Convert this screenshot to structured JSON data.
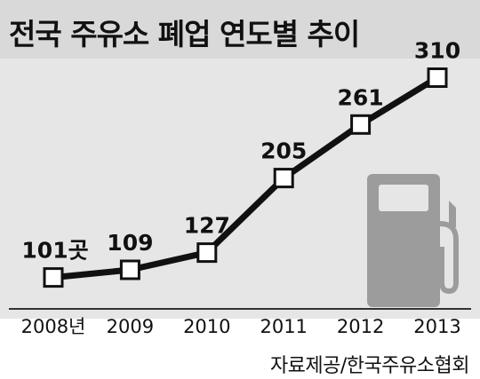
{
  "title": "전국 주유소 폐업 연도별 추이",
  "source": "자료제공/한국주유소협회",
  "chart_data": {
    "type": "line",
    "title": "전국 주유소 폐업 연도별 추이",
    "categories": [
      "2008년",
      "2009",
      "2010",
      "2011",
      "2012",
      "2013"
    ],
    "values": [
      101,
      109,
      127,
      205,
      261,
      310
    ],
    "value_labels": [
      "101곳",
      "109",
      "127",
      "205",
      "261",
      "310"
    ],
    "unit": "곳",
    "xlabel": "",
    "ylabel": "",
    "ylim": [
      70,
      330
    ],
    "grid": false,
    "legend": "none",
    "colors": {
      "line": "#111111",
      "marker_fill": "#ffffff",
      "background": "#e6e6e6",
      "title_band": "#d9d9d9"
    }
  }
}
